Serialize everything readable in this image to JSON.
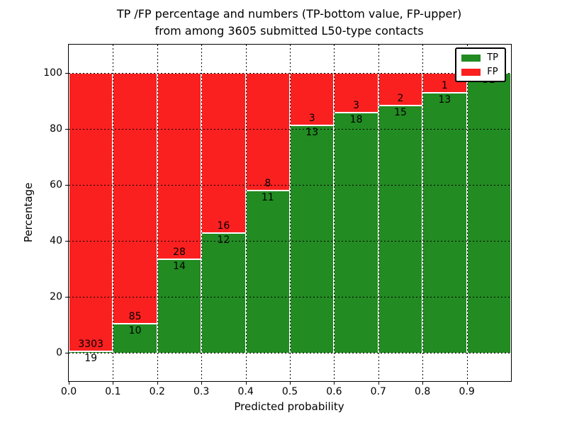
{
  "chart_data": {
    "type": "bar",
    "stacked": true,
    "title_line1": "TP /FP percentage and numbers (TP-bottom value, FP-upper)",
    "title_line2": "from among 3605 submitted L50-type contacts",
    "xlabel": "Predicted probability",
    "ylabel": "Percentage",
    "total_contacts": 3605,
    "xlim": [
      0.0,
      1.0
    ],
    "ylim": [
      -10,
      110
    ],
    "bin_edges": [
      0.0,
      0.1,
      0.2,
      0.3,
      0.4,
      0.5,
      0.6,
      0.7,
      0.8,
      0.9,
      1.0
    ],
    "xticks": [
      {
        "value": 0.0,
        "label": "0.0"
      },
      {
        "value": 0.1,
        "label": "0.1"
      },
      {
        "value": 0.2,
        "label": "0.2"
      },
      {
        "value": 0.3,
        "label": "0.3"
      },
      {
        "value": 0.4,
        "label": "0.4"
      },
      {
        "value": 0.5,
        "label": "0.5"
      },
      {
        "value": 0.6,
        "label": "0.6"
      },
      {
        "value": 0.7,
        "label": "0.7"
      },
      {
        "value": 0.8,
        "label": "0.8"
      },
      {
        "value": 0.9,
        "label": "0.9"
      }
    ],
    "yticks": [
      {
        "value": 0,
        "label": "0"
      },
      {
        "value": 20,
        "label": "20"
      },
      {
        "value": 40,
        "label": "40"
      },
      {
        "value": 60,
        "label": "60"
      },
      {
        "value": 80,
        "label": "80"
      },
      {
        "value": 100,
        "label": "100"
      }
    ],
    "xgrid": [
      0.1,
      0.2,
      0.3,
      0.4,
      0.5,
      0.6,
      0.7,
      0.8,
      0.9
    ],
    "ygrid": [
      0,
      20,
      40,
      60,
      80,
      100
    ],
    "colors": {
      "tp": "#228b22",
      "fp": "#fb2020",
      "grid": "#000000",
      "axes": "#000000"
    },
    "grid_on": true,
    "legend": {
      "position": "upper right",
      "entries": [
        {
          "label": "TP",
          "color": "#228b22"
        },
        {
          "label": "FP",
          "color": "#fb2020"
        }
      ]
    },
    "bars": [
      {
        "bin": "0.0-0.1",
        "tp": 19,
        "fp": 3303,
        "tp_pct": 0.57
      },
      {
        "bin": "0.1-0.2",
        "tp": 10,
        "fp": 85,
        "tp_pct": 10.53
      },
      {
        "bin": "0.2-0.3",
        "tp": 14,
        "fp": 28,
        "tp_pct": 33.33
      },
      {
        "bin": "0.3-0.4",
        "tp": 12,
        "fp": 16,
        "tp_pct": 42.86
      },
      {
        "bin": "0.4-0.5",
        "tp": 11,
        "fp": 8,
        "tp_pct": 57.89
      },
      {
        "bin": "0.5-0.6",
        "tp": 13,
        "fp": 3,
        "tp_pct": 81.25
      },
      {
        "bin": "0.6-0.7",
        "tp": 18,
        "fp": 3,
        "tp_pct": 85.71
      },
      {
        "bin": "0.7-0.8",
        "tp": 15,
        "fp": 2,
        "tp_pct": 88.24
      },
      {
        "bin": "0.8-0.9",
        "tp": 13,
        "fp": 1,
        "tp_pct": 92.86
      },
      {
        "bin": "0.9-1.0",
        "tp": 31,
        "fp": 0,
        "tp_pct": 100.0
      }
    ]
  }
}
